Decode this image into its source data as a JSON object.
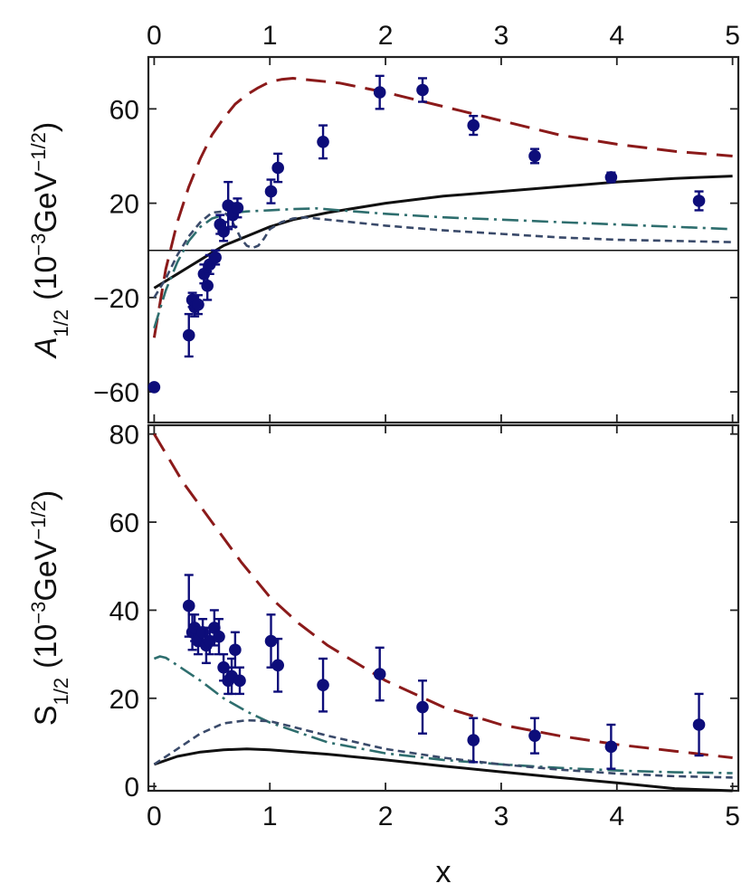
{
  "chart_data": [
    {
      "type": "scatter",
      "panel": "top",
      "ylabel_main": "A",
      "ylabel_sub": "1/2",
      "ylabel_units": "(10⁻³GeV⁻¹ᐟ²)",
      "ylabel_units_parts": [
        "(10",
        "−3",
        "GeV",
        "−1/2",
        ")"
      ],
      "xlim": [
        -0.05,
        5.05
      ],
      "ylim": [
        -73,
        82
      ],
      "xticks_top": [
        "0",
        "1",
        "2",
        "3",
        "4",
        "5"
      ],
      "xtick_values": [
        0,
        1,
        2,
        3,
        4,
        5
      ],
      "yticks": [
        "−60",
        "−20",
        "20",
        "60"
      ],
      "ytick_values": [
        -60,
        -20,
        20,
        60
      ],
      "data_points": {
        "x": [
          0.0,
          0.3,
          0.33,
          0.35,
          0.38,
          0.43,
          0.46,
          0.48,
          0.53,
          0.57,
          0.6,
          0.64,
          0.68,
          0.72,
          1.01,
          1.07,
          1.46,
          1.95,
          2.32,
          2.76,
          3.29,
          3.95,
          4.71
        ],
        "y": [
          -58,
          -36,
          -21,
          -24,
          -23,
          -10,
          -15,
          -6,
          -3,
          11,
          8,
          19,
          15,
          18,
          25,
          35,
          46,
          67,
          68,
          53,
          40,
          31,
          21
        ],
        "err": [
          0,
          9,
          3,
          4,
          4,
          4,
          6,
          4,
          3,
          4,
          4,
          10,
          5,
          4,
          5,
          6,
          7,
          7,
          5,
          4,
          3,
          2,
          4
        ]
      },
      "series": [
        {
          "name": "dashed-red",
          "color": "#8b1a1a",
          "style": "long-dash",
          "x": [
            0,
            0.1,
            0.2,
            0.3,
            0.4,
            0.5,
            0.6,
            0.7,
            0.8,
            0.9,
            1.0,
            1.1,
            1.2,
            1.4,
            1.6,
            1.8,
            2.0,
            2.5,
            3.0,
            3.5,
            4.0,
            4.5,
            5.0
          ],
          "y": [
            -37,
            -8,
            12,
            27,
            39,
            49,
            56,
            62,
            66,
            69,
            71.5,
            72.5,
            73,
            72,
            71,
            69,
            67,
            61,
            55,
            49,
            45,
            42,
            40
          ]
        },
        {
          "name": "solid-black",
          "color": "#111111",
          "style": "solid",
          "x": [
            0,
            0.1,
            0.2,
            0.3,
            0.4,
            0.5,
            0.6,
            0.7,
            0.8,
            1.0,
            1.2,
            1.5,
            2.0,
            2.5,
            3.0,
            3.5,
            4.0,
            4.5,
            5.0
          ],
          "y": [
            -16,
            -13,
            -10,
            -7,
            -4,
            -1,
            2,
            4,
            6,
            10,
            13,
            16,
            20,
            23,
            25,
            27,
            29,
            30.5,
            31.5
          ]
        },
        {
          "name": "dash-dot-teal",
          "color": "#2e6e6e",
          "style": "dash-dot",
          "x": [
            0,
            0.1,
            0.2,
            0.3,
            0.4,
            0.5,
            0.6,
            0.7,
            0.8,
            1.0,
            1.2,
            1.4,
            1.6,
            2.0,
            2.5,
            3.0,
            3.5,
            4.0,
            4.5,
            5.0
          ],
          "y": [
            -33,
            -17,
            -5,
            4,
            10,
            13.5,
            15,
            16,
            16.5,
            17,
            17.5,
            17.8,
            17,
            15.5,
            14,
            13,
            12,
            11,
            10,
            9
          ]
        },
        {
          "name": "short-dash-navy",
          "color": "#3a4a6a",
          "style": "short-dash",
          "x": [
            0,
            0.1,
            0.2,
            0.3,
            0.4,
            0.5,
            0.6,
            0.65,
            0.7,
            0.75,
            0.8,
            0.85,
            0.9,
            0.95,
            1.0,
            1.1,
            1.2,
            1.3,
            1.4,
            1.6,
            2.0,
            2.5,
            3.0,
            3.5,
            4.0,
            4.5,
            5.0
          ],
          "y": [
            -20,
            -12,
            -2,
            6,
            12,
            16,
            16.5,
            14,
            10,
            5,
            2,
            1,
            2,
            5,
            9,
            12,
            13.5,
            14,
            13.5,
            12.5,
            10.5,
            8.5,
            7,
            5.5,
            4.5,
            4,
            3.5
          ]
        }
      ]
    },
    {
      "type": "scatter",
      "panel": "bottom",
      "ylabel_main": "S",
      "ylabel_sub": "1/2",
      "ylabel_units_parts": [
        "(10",
        "−3",
        "GeV",
        "−1/2",
        ")"
      ],
      "xlabel": "x",
      "xlim": [
        -0.05,
        5.05
      ],
      "ylim": [
        -1,
        82
      ],
      "xticks_bottom": [
        "0",
        "1",
        "2",
        "3",
        "4",
        "5"
      ],
      "xtick_values": [
        0,
        1,
        2,
        3,
        4,
        5
      ],
      "yticks": [
        "0",
        "20",
        "40",
        "60",
        "80"
      ],
      "ytick_values": [
        0,
        20,
        40,
        60,
        80
      ],
      "data_points": {
        "x": [
          0.3,
          0.33,
          0.35,
          0.38,
          0.42,
          0.45,
          0.48,
          0.52,
          0.56,
          0.6,
          0.64,
          0.67,
          0.7,
          0.74,
          1.01,
          1.07,
          1.46,
          1.95,
          2.32,
          2.76,
          3.29,
          3.95,
          4.71
        ],
        "y": [
          41,
          35,
          36,
          33,
          35,
          32,
          33,
          36,
          34,
          27,
          24,
          25,
          31,
          24,
          33,
          27.5,
          23,
          25.5,
          18,
          10.5,
          11.5,
          9,
          14
        ],
        "err": [
          7,
          4,
          3,
          3,
          3,
          4,
          3,
          4,
          4,
          3,
          3,
          4,
          4,
          3,
          6,
          6,
          6,
          6,
          6,
          5,
          4,
          5,
          7
        ]
      },
      "series": [
        {
          "name": "dashed-red",
          "color": "#8b1a1a",
          "style": "long-dash",
          "x": [
            0,
            0.25,
            0.5,
            0.75,
            1.0,
            1.25,
            1.5,
            2.0,
            2.5,
            3.0,
            3.5,
            4.0,
            4.5,
            5.0
          ],
          "y": [
            80,
            69,
            60,
            51,
            43,
            37,
            32,
            24,
            18,
            14,
            11.5,
            9.5,
            8,
            6.5
          ]
        },
        {
          "name": "solid-black",
          "color": "#111111",
          "style": "solid",
          "x": [
            0,
            0.2,
            0.4,
            0.6,
            0.8,
            1.0,
            1.5,
            2.0,
            2.5,
            3.0,
            3.5,
            4.0,
            4.5,
            5.0
          ],
          "y": [
            5,
            6.8,
            7.8,
            8.3,
            8.5,
            8.3,
            7.3,
            6,
            4.6,
            3.3,
            2,
            0.8,
            -0.5,
            -1.5
          ]
        },
        {
          "name": "dash-dot-teal",
          "color": "#2e6e6e",
          "style": "dash-dot",
          "x": [
            0,
            0.05,
            0.1,
            0.2,
            0.4,
            0.6,
            0.8,
            1.0,
            1.5,
            2.0,
            2.5,
            3.0,
            3.5,
            4.0,
            4.5,
            5.0
          ],
          "y": [
            29,
            29.5,
            29.2,
            27.5,
            24,
            20,
            17,
            14.5,
            10,
            7.5,
            6,
            5,
            4.2,
            3.6,
            3.2,
            3
          ]
        },
        {
          "name": "short-dash-navy",
          "color": "#3a4a6a",
          "style": "short-dash",
          "x": [
            0,
            0.2,
            0.4,
            0.6,
            0.8,
            1.0,
            1.2,
            1.5,
            2.0,
            2.5,
            3.0,
            3.5,
            4.0,
            4.5,
            5.0
          ],
          "y": [
            5,
            8.5,
            12,
            14.3,
            15,
            14.8,
            13.5,
            11.5,
            8.5,
            6.5,
            5,
            3.8,
            2.9,
            2.3,
            2
          ]
        }
      ]
    }
  ],
  "colors": {
    "marker": "#0d0d7a",
    "frame": "#222222"
  }
}
